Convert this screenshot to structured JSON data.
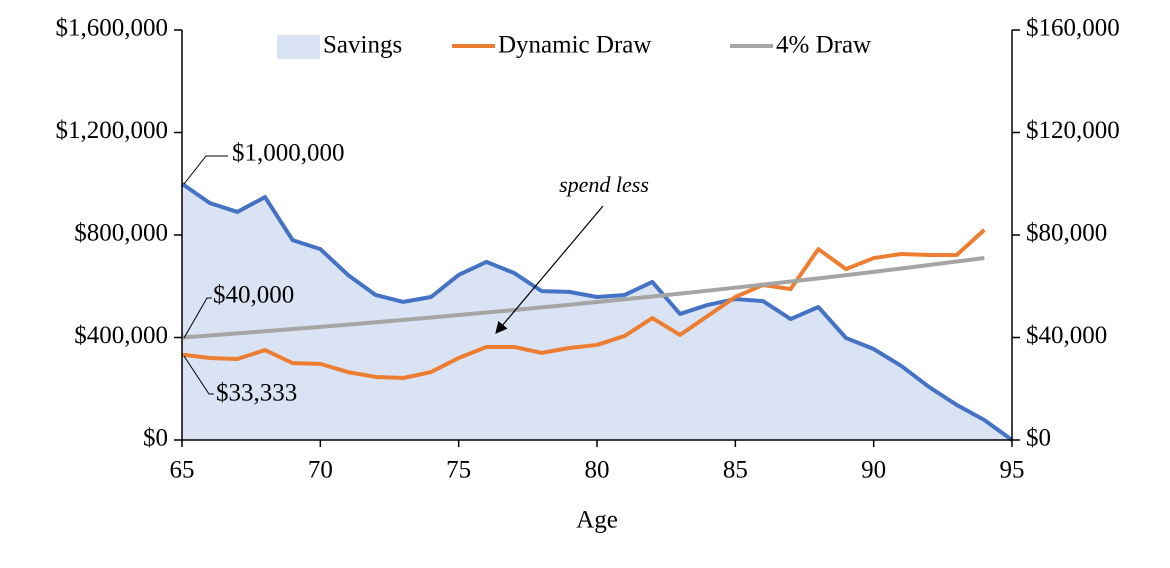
{
  "chart_data": {
    "type": "line",
    "x_label": "Age",
    "x": [
      65,
      66,
      67,
      68,
      69,
      70,
      71,
      72,
      73,
      74,
      75,
      76,
      77,
      78,
      79,
      80,
      81,
      82,
      83,
      84,
      85,
      86,
      87,
      88,
      89,
      90,
      91,
      92,
      93,
      94,
      95
    ],
    "xlim": [
      65,
      95
    ],
    "xticks": [
      65,
      70,
      75,
      80,
      85,
      90,
      95
    ],
    "ylim": [
      0,
      1600000
    ],
    "yticks": [
      {
        "value": 0,
        "label": "$0"
      },
      {
        "value": 400000,
        "label": "$400,000"
      },
      {
        "value": 800000,
        "label": "$800,000"
      },
      {
        "value": 1200000,
        "label": "$1,200,000"
      },
      {
        "value": 1600000,
        "label": "$1,600,000"
      }
    ],
    "y2lim": [
      0,
      160000
    ],
    "y2ticks": [
      {
        "value": 0,
        "label": "$0"
      },
      {
        "value": 40000,
        "label": "$40,000"
      },
      {
        "value": 80000,
        "label": "$80,000"
      },
      {
        "value": 120000,
        "label": "$120,000"
      },
      {
        "value": 160000,
        "label": "$160,000"
      }
    ],
    "legend": "top",
    "series": [
      {
        "name": "Savings",
        "type": "area",
        "color": "#4472c4",
        "fill": "#dae3f3",
        "values": [
          1000000,
          925000,
          890000,
          948000,
          780000,
          745000,
          644000,
          566000,
          539000,
          558000,
          644000,
          695000,
          652000,
          581000,
          578000,
          558000,
          566000,
          617000,
          492000,
          527000,
          550000,
          542000,
          472000,
          519000,
          398000,
          355000,
          289000,
          207000,
          137000,
          78000,
          0
        ]
      },
      {
        "name": "Dynamic Draw",
        "type": "line",
        "axis": "y2",
        "color": "#ed7d31",
        "values": [
          33333,
          32000,
          31600,
          35100,
          30000,
          29700,
          26500,
          24600,
          24200,
          26500,
          32000,
          36300,
          36300,
          34000,
          35900,
          37100,
          40600,
          47600,
          41000,
          48400,
          55800,
          60500,
          58900,
          74500,
          66700,
          71000,
          72600,
          72200,
          72200,
          82000,
          null
        ]
      },
      {
        "name": "4% Draw",
        "type": "line",
        "axis": "y2",
        "color": "#a5a5a5",
        "values": [
          40000,
          40800,
          41616,
          42448,
          43297,
          44163,
          45046,
          45947,
          46866,
          47804,
          48760,
          49735,
          50730,
          51744,
          52779,
          53835,
          54911,
          56010,
          57130,
          58272,
          59438,
          60627,
          61839,
          63076,
          64337,
          65624,
          66937,
          68275,
          69641,
          71034,
          null
        ]
      }
    ],
    "annotations": [
      "$1,000,000",
      "$40,000",
      "$33,333",
      "spend less"
    ]
  }
}
